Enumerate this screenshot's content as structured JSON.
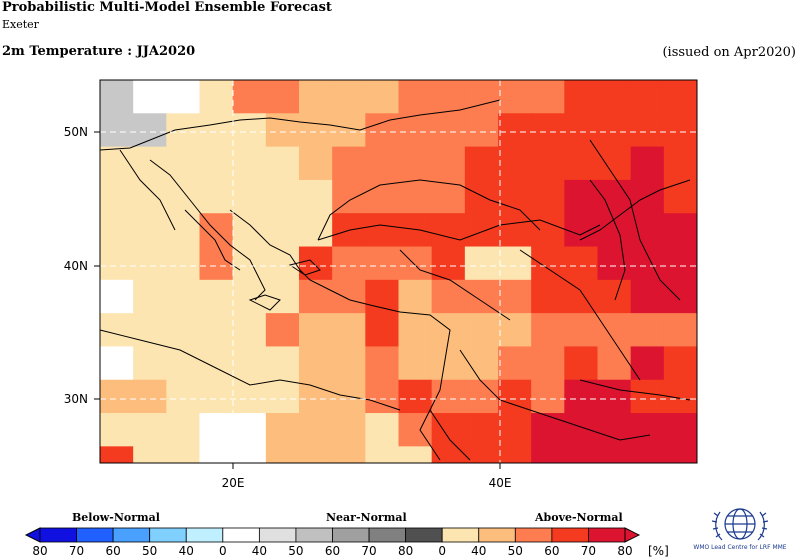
{
  "header": {
    "title": "Probabilistic Multi-Model Ensemble Forecast",
    "subtitle": "Exeter",
    "variable": "2m Temperature : JJA2020",
    "issued": "(issued on Apr2020)"
  },
  "map": {
    "lat_labels": [
      "50N",
      "40N",
      "30N"
    ],
    "lon_labels": [
      "20E",
      "40E"
    ],
    "colors": {
      "white": "#ffffff",
      "grey": "#c8c8c8",
      "a40": "#fde5b2",
      "a50": "#fdbd7c",
      "a60": "#fd7d50",
      "a70": "#f43a1f",
      "a80": "#dc1430"
    }
  },
  "legend": {
    "below_label": "Below-Normal",
    "near_label": "Near-Normal",
    "above_label": "Above-Normal",
    "ticks": [
      "80",
      "70",
      "60",
      "50",
      "40",
      "0",
      "40",
      "50",
      "60",
      "70",
      "80",
      "0",
      "40",
      "50",
      "60",
      "70",
      "80"
    ],
    "unit": "[%]",
    "colors": [
      "#1010e0",
      "#2060ff",
      "#4aa0ff",
      "#80d0ff",
      "#c0f0ff",
      "#ffffff",
      "#e0e0e0",
      "#c0c0c0",
      "#a0a0a0",
      "#808080",
      "#505050",
      "#fde5b2",
      "#fdbd7c",
      "#fd7d50",
      "#f43a1f",
      "#dc1430"
    ]
  },
  "logo": {
    "text": "WMO Lead Centre for LRF MME"
  }
}
